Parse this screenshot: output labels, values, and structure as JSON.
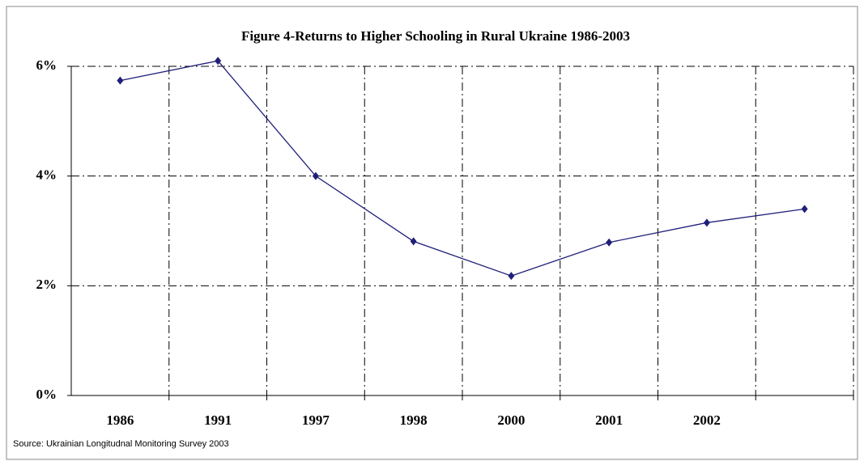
{
  "chart_data": {
    "type": "line",
    "title": "Figure 4-Returns to Higher Schooling in Rural Ukraine 1986-2003",
    "source": "Source: Ukrainian Longitudnal Monitoring Survey 2003",
    "categories": [
      "1986",
      "1991",
      "1997",
      "1998",
      "2000",
      "2001",
      "2002",
      null
    ],
    "series": [
      {
        "name": "Returns to Higher Schooling",
        "color": "#1f1f7a",
        "values": [
          5.74,
          6.1,
          4.0,
          2.81,
          2.18,
          2.79,
          3.15,
          3.4
        ]
      }
    ],
    "ylim": [
      0,
      6
    ],
    "yticks": [
      {
        "value": 0,
        "label": "0%"
      },
      {
        "value": 2,
        "label": "2%"
      },
      {
        "value": 4,
        "label": "4%"
      },
      {
        "value": 6,
        "label": "6%"
      }
    ],
    "grid": true
  }
}
